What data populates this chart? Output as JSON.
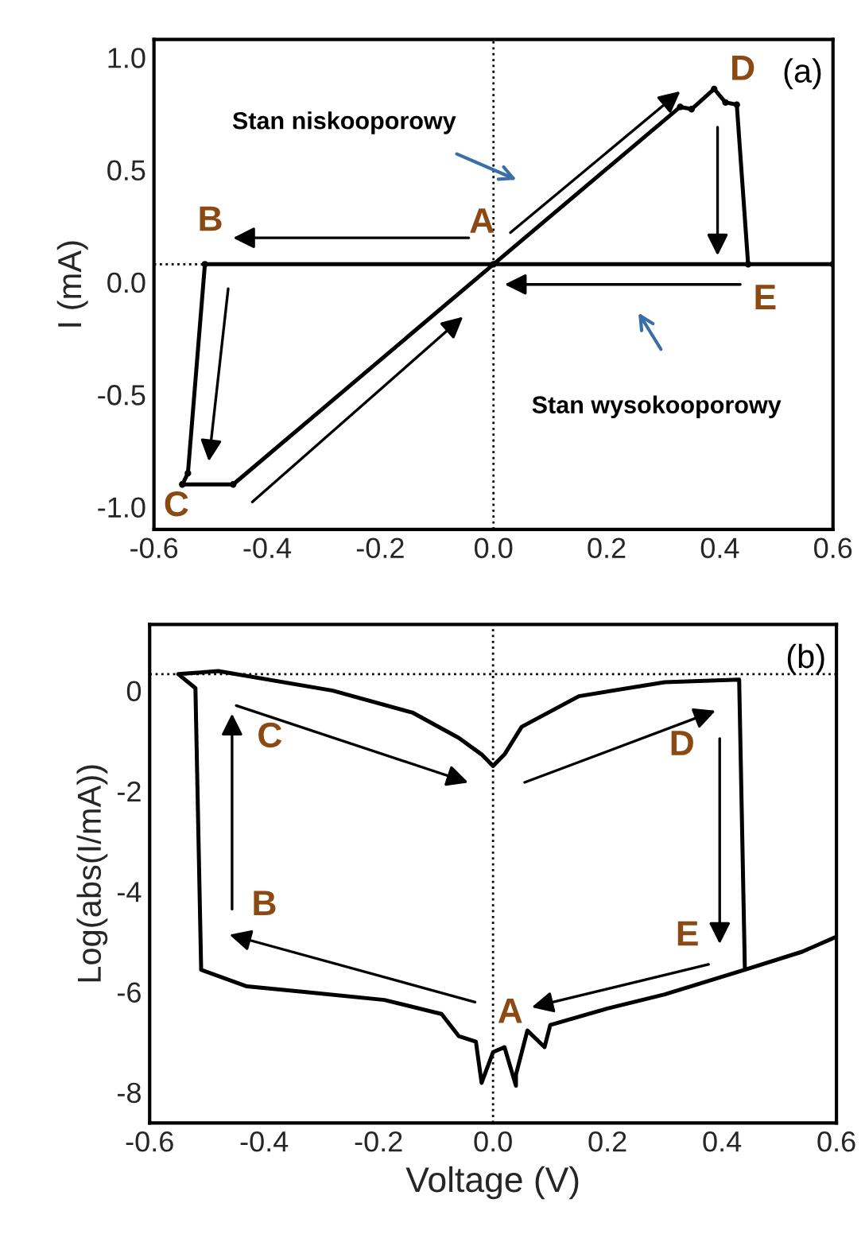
{
  "chart_data": [
    {
      "type": "line",
      "ylabel": "I (mA)",
      "xlim": [
        -0.6,
        0.6
      ],
      "ylim": [
        -1.1,
        1.08
      ],
      "xticks": [
        {
          "value": -0.6,
          "label": "-0.6"
        },
        {
          "value": -0.4,
          "label": "-0.4"
        },
        {
          "value": -0.2,
          "label": "-0.2"
        },
        {
          "value": 0.0,
          "label": "0.0"
        },
        {
          "value": 0.2,
          "label": "0.2"
        },
        {
          "value": 0.4,
          "label": "0.4"
        },
        {
          "value": 0.6,
          "label": "0.6"
        }
      ],
      "yticks": [
        {
          "value": -1.0,
          "label": "-1.0"
        },
        {
          "value": -0.5,
          "label": "-0.5"
        },
        {
          "value": 0.0,
          "label": "0.0"
        },
        {
          "value": 0.5,
          "label": "0.5"
        },
        {
          "value": 1.0,
          "label": "1.0"
        }
      ],
      "grid": false,
      "legend": false,
      "marker": "circle",
      "line_style": "solid",
      "series": [
        {
          "color": "#000000",
          "x": [
            0.6,
            -0.51,
            -0.54,
            -0.55,
            -0.46,
            0.0,
            0.33,
            0.35,
            0.39,
            0.41,
            0.43,
            0.45
          ],
          "values": [
            0.08,
            0.08,
            -0.85,
            -0.9,
            -0.9,
            0.08,
            0.78,
            0.77,
            0.86,
            0.8,
            0.79,
            0.08
          ]
        }
      ],
      "ref_lines": [
        {
          "axis": "x",
          "value": 0.0,
          "line_style": "dotted"
        },
        {
          "axis": "y",
          "value": 0.08,
          "line_style": "dotted"
        }
      ],
      "annotations": [
        "(a)",
        "Stan niskooporowy",
        "Stan wysokooporowy",
        "A",
        "B",
        "C",
        "D",
        "E"
      ]
    },
    {
      "type": "line",
      "xlabel": "Voltage (V)",
      "ylabel": "Log(abs(I/mA))",
      "xlim": [
        -0.6,
        0.6
      ],
      "ylim": [
        -8.61,
        1.32
      ],
      "xticks": [
        {
          "value": -0.6,
          "label": "-0.6"
        },
        {
          "value": -0.4,
          "label": "-0.4"
        },
        {
          "value": -0.2,
          "label": "-0.2"
        },
        {
          "value": 0.0,
          "label": "0.0"
        },
        {
          "value": 0.2,
          "label": "0.2"
        },
        {
          "value": 0.4,
          "label": "0.4"
        },
        {
          "value": 0.6,
          "label": "0.6"
        }
      ],
      "yticks": [
        -8,
        -6,
        -4,
        -2,
        0
      ],
      "grid": false,
      "legend": false,
      "marker": "none",
      "line_style": "solid",
      "series": [
        {
          "color": "#000000",
          "x": [
            0.6,
            0.54,
            0.44,
            0.3,
            0.2,
            0.1,
            0.09,
            0.06,
            0.04,
            0.04,
            0.02,
            0.0,
            -0.02,
            -0.03,
            -0.06,
            -0.09,
            -0.19,
            -0.33,
            -0.43,
            -0.51,
            -0.52,
            -0.55,
            -0.48,
            -0.28,
            -0.14,
            -0.06,
            -0.02,
            0.0,
            0.02,
            0.05,
            0.15,
            0.3,
            0.43,
            0.44
          ],
          "values": [
            -4.9,
            -5.2,
            -5.56,
            -6.05,
            -6.33,
            -6.66,
            -7.1,
            -6.77,
            -7.65,
            -7.87,
            -7.1,
            -7.2,
            -7.81,
            -6.99,
            -6.88,
            -6.44,
            -6.16,
            -6.0,
            -5.89,
            -5.56,
            0.05,
            0.33,
            0.39,
            0.0,
            -0.44,
            -0.94,
            -1.27,
            -1.5,
            -1.27,
            -0.72,
            -0.11,
            0.17,
            0.22,
            -5.56
          ]
        }
      ],
      "ref_lines": [
        {
          "axis": "x",
          "value": 0.0,
          "line_style": "dotted"
        },
        {
          "axis": "y",
          "value": 0.33,
          "line_style": "dotted"
        }
      ],
      "annotations": [
        "(b)",
        "A",
        "B",
        "C",
        "D",
        "E"
      ]
    }
  ]
}
